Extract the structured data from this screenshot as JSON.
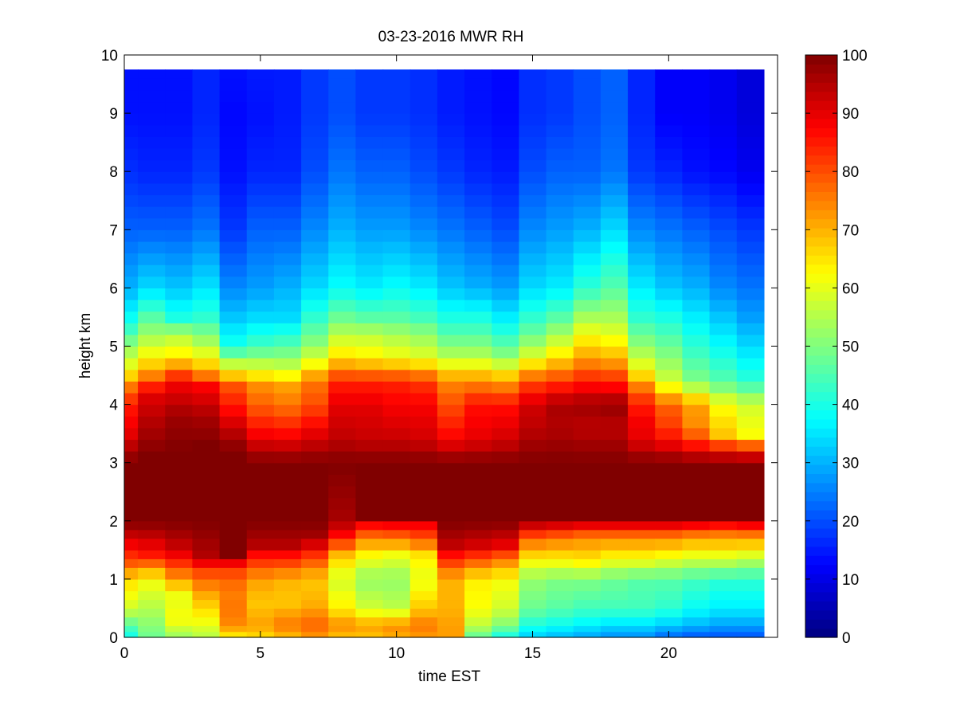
{
  "chart_data": {
    "type": "heatmap",
    "title": "03-23-2016 MWR RH",
    "xlabel": "time EST",
    "ylabel": "height km",
    "xlim": [
      0,
      24
    ],
    "ylim": [
      0,
      10
    ],
    "x_ticks": [
      0,
      5,
      10,
      15,
      20
    ],
    "y_ticks": [
      0,
      1,
      2,
      3,
      4,
      5,
      6,
      7,
      8,
      9,
      10
    ],
    "colorbar": {
      "min": 0,
      "max": 100,
      "ticks": [
        0,
        10,
        20,
        30,
        40,
        50,
        60,
        70,
        80,
        90,
        100
      ],
      "colormap": "jet"
    },
    "grid": false,
    "x": [
      0,
      1,
      2,
      3,
      4,
      5,
      6,
      7,
      8,
      9,
      10,
      11,
      12,
      13,
      14,
      15,
      16,
      17,
      18,
      19,
      20,
      21,
      22,
      23
    ],
    "heights": [
      0,
      0.1,
      0.2,
      0.35,
      0.5,
      0.65,
      0.8,
      1.0,
      1.2,
      1.35,
      1.5,
      1.7,
      1.85,
      2.0,
      2.2,
      2.4,
      2.6,
      2.8,
      3.0,
      3.2,
      3.4,
      3.6,
      3.8,
      4.0,
      4.2,
      4.4,
      4.6,
      4.8,
      5.0,
      5.2,
      5.4,
      5.6,
      5.8,
      6.0,
      6.2,
      6.4,
      6.6,
      6.8,
      7.0,
      7.2,
      7.4,
      7.6,
      7.8,
      8.0,
      8.2,
      8.4,
      8.6,
      8.8,
      9.0,
      9.2,
      9.4,
      9.6,
      9.75
    ],
    "profiles": [
      {
        "time": 0,
        "h": [
          0,
          0.5,
          1.0,
          1.3,
          2.0,
          3.0,
          3.5,
          4.0,
          4.3,
          4.6,
          5.0,
          5.4,
          6.0,
          7.0,
          8.0,
          9.0,
          9.75
        ],
        "rh": [
          38,
          58,
          66,
          80,
          100,
          100,
          90,
          85,
          76,
          62,
          52,
          40,
          30,
          22,
          17,
          14,
          14
        ]
      },
      {
        "time": 1,
        "h": [
          0,
          0.5,
          1.0,
          1.4,
          2.0,
          3.1,
          3.7,
          4.2,
          4.6,
          5.0,
          5.5,
          6.0,
          7.0,
          8.0,
          9.0,
          9.75
        ],
        "rh": [
          48,
          55,
          62,
          85,
          100,
          100,
          95,
          90,
          70,
          58,
          46,
          34,
          22,
          16,
          14,
          14
        ]
      },
      {
        "time": 2,
        "h": [
          0,
          0.3,
          0.7,
          1.0,
          1.5,
          2.0,
          3.2,
          3.8,
          4.4,
          4.8,
          5.2,
          5.5,
          6.0,
          7.0,
          8.0,
          9.0,
          9.75
        ],
        "rh": [
          52,
          62,
          60,
          72,
          92,
          100,
          100,
          97,
          88,
          65,
          55,
          40,
          32,
          22,
          16,
          14,
          14
        ]
      },
      {
        "time": 3,
        "h": [
          0,
          0.3,
          0.7,
          1.1,
          1.4,
          2.0,
          3.3,
          3.8,
          4.3,
          4.6,
          5.0,
          5.5,
          6.0,
          7.0,
          8.0,
          9.0,
          9.75
        ],
        "rh": [
          55,
          62,
          70,
          80,
          95,
          100,
          100,
          96,
          88,
          70,
          56,
          42,
          35,
          24,
          18,
          16,
          16
        ]
      },
      {
        "time": 4,
        "h": [
          0,
          0.2,
          0.5,
          0.8,
          1.2,
          1.4,
          2.0,
          3.2,
          3.6,
          4.0,
          4.3,
          4.6,
          5.0,
          5.5,
          6.0,
          7.0,
          8.0,
          9.0,
          9.75
        ],
        "rh": [
          62,
          74,
          76,
          75,
          82,
          100,
          100,
          100,
          93,
          85,
          80,
          62,
          40,
          32,
          26,
          18,
          14,
          13,
          14
        ]
      },
      {
        "time": 5,
        "h": [
          0,
          0.2,
          0.6,
          1.0,
          1.4,
          1.6,
          2.0,
          3.0,
          3.5,
          4.0,
          4.3,
          4.6,
          5.0,
          5.5,
          6.0,
          7.0,
          8.0,
          9.0,
          9.75
        ],
        "rh": [
          65,
          72,
          68,
          72,
          86,
          95,
          100,
          100,
          88,
          78,
          74,
          60,
          44,
          34,
          28,
          22,
          16,
          14,
          15
        ]
      },
      {
        "time": 6,
        "h": [
          0,
          0.2,
          0.6,
          1.0,
          1.4,
          1.6,
          2.0,
          3.0,
          3.5,
          4.0,
          4.3,
          4.6,
          5.0,
          5.5,
          6.0,
          7.0,
          8.0,
          9.0,
          9.75
        ],
        "rh": [
          68,
          76,
          68,
          70,
          86,
          95,
          100,
          100,
          87,
          76,
          72,
          58,
          46,
          34,
          30,
          22,
          16,
          15,
          15
        ]
      },
      {
        "time": 7,
        "h": [
          0,
          0.2,
          0.6,
          1.0,
          1.4,
          1.7,
          2.0,
          3.0,
          3.5,
          4.0,
          4.4,
          4.7,
          5.0,
          5.5,
          6.0,
          7.0,
          8.0,
          9.0,
          9.75
        ],
        "rh": [
          72,
          78,
          70,
          68,
          82,
          96,
          100,
          100,
          90,
          80,
          76,
          62,
          52,
          42,
          34,
          26,
          20,
          18,
          18
        ]
      },
      {
        "time": 8,
        "h": [
          0,
          0.2,
          0.5,
          1.0,
          1.4,
          1.7,
          2.0,
          3.0,
          3.4,
          4.0,
          4.4,
          4.8,
          5.2,
          5.5,
          6.0,
          7.0,
          8.0,
          9.0,
          9.75
        ],
        "rh": [
          68,
          74,
          64,
          58,
          68,
          85,
          96,
          100,
          94,
          90,
          84,
          66,
          56,
          48,
          38,
          30,
          24,
          20,
          20
        ]
      },
      {
        "time": 9,
        "h": [
          0,
          0.2,
          0.5,
          1.0,
          1.4,
          1.7,
          1.9,
          2.1,
          3.0,
          3.4,
          4.0,
          4.4,
          4.8,
          5.2,
          5.5,
          6.0,
          7.0,
          8.0,
          9.0,
          9.75
        ],
        "rh": [
          68,
          72,
          58,
          52,
          62,
          75,
          85,
          100,
          100,
          93,
          90,
          84,
          64,
          56,
          46,
          36,
          28,
          22,
          18,
          18
        ]
      },
      {
        "time": 10,
        "h": [
          0,
          0.2,
          0.5,
          1.0,
          1.4,
          1.7,
          1.9,
          2.1,
          3.0,
          3.4,
          4.0,
          4.4,
          4.8,
          5.2,
          5.5,
          6.0,
          7.0,
          8.0,
          9.0,
          9.75
        ],
        "rh": [
          70,
          74,
          56,
          52,
          60,
          76,
          86,
          100,
          100,
          93,
          88,
          84,
          62,
          54,
          46,
          38,
          28,
          22,
          18,
          18
        ]
      },
      {
        "time": 11,
        "h": [
          0,
          0.2,
          0.5,
          1.0,
          1.4,
          1.7,
          1.9,
          2.1,
          3.0,
          3.4,
          4.0,
          4.4,
          4.8,
          5.2,
          5.5,
          6.0,
          7.0,
          8.0,
          9.0,
          9.75
        ],
        "rh": [
          72,
          76,
          68,
          60,
          64,
          80,
          86,
          100,
          100,
          92,
          88,
          82,
          60,
          52,
          44,
          36,
          26,
          20,
          17,
          17
        ]
      },
      {
        "time": 12,
        "h": [
          0,
          0.2,
          0.5,
          1.0,
          1.3,
          1.6,
          2.0,
          3.0,
          3.4,
          4.0,
          4.4,
          4.8,
          5.2,
          5.5,
          6.0,
          7.0,
          8.0,
          9.0,
          9.75
        ],
        "rh": [
          72,
          72,
          70,
          70,
          82,
          94,
          100,
          100,
          88,
          80,
          74,
          56,
          46,
          40,
          32,
          24,
          18,
          15,
          15
        ]
      },
      {
        "time": 13,
        "h": [
          0,
          0.2,
          0.5,
          1.0,
          1.3,
          1.6,
          2.0,
          3.0,
          3.4,
          4.0,
          4.4,
          4.8,
          5.2,
          5.5,
          6.0,
          7.0,
          8.0,
          9.0,
          9.75
        ],
        "rh": [
          46,
          56,
          62,
          64,
          78,
          92,
          100,
          100,
          90,
          86,
          74,
          56,
          46,
          40,
          30,
          22,
          16,
          14,
          14
        ]
      },
      {
        "time": 14,
        "h": [
          0,
          0.2,
          0.5,
          1.0,
          1.3,
          1.6,
          2.0,
          3.0,
          3.4,
          4.0,
          4.4,
          4.8,
          5.2,
          5.5,
          6.0,
          7.0,
          8.0,
          9.0,
          9.75
        ],
        "rh": [
          38,
          50,
          58,
          62,
          74,
          90,
          100,
          100,
          92,
          86,
          72,
          52,
          42,
          36,
          28,
          20,
          15,
          13,
          13
        ]
      },
      {
        "time": 15,
        "h": [
          0,
          0.2,
          0.5,
          1.0,
          1.3,
          1.7,
          1.9,
          2.0,
          3.0,
          3.6,
          4.0,
          4.4,
          4.8,
          5.2,
          5.5,
          6.0,
          7.0,
          8.0,
          9.0,
          9.75
        ],
        "rh": [
          32,
          40,
          48,
          52,
          62,
          78,
          90,
          100,
          100,
          94,
          92,
          80,
          60,
          48,
          42,
          34,
          26,
          20,
          17,
          17
        ]
      },
      {
        "time": 16,
        "h": [
          0,
          0.2,
          0.5,
          1.0,
          1.3,
          1.7,
          1.9,
          2.0,
          3.0,
          3.6,
          4.0,
          4.4,
          4.8,
          5.2,
          5.5,
          6.0,
          7.0,
          8.0,
          9.0,
          9.75
        ],
        "rh": [
          30,
          38,
          46,
          50,
          62,
          76,
          88,
          100,
          100,
          95,
          96,
          82,
          66,
          54,
          46,
          36,
          28,
          22,
          18,
          18
        ]
      },
      {
        "time": 17,
        "h": [
          0,
          0.2,
          0.5,
          1.0,
          1.3,
          1.7,
          1.9,
          2.0,
          3.0,
          3.6,
          4.0,
          4.4,
          4.8,
          5.2,
          5.5,
          6.0,
          7.0,
          8.0,
          9.0,
          9.75
        ],
        "rh": [
          28,
          36,
          44,
          50,
          64,
          74,
          86,
          100,
          100,
          94,
          97,
          85,
          72,
          62,
          54,
          42,
          30,
          22,
          20,
          20
        ]
      },
      {
        "time": 18,
        "h": [
          0,
          0.2,
          0.5,
          1.0,
          1.3,
          1.7,
          1.9,
          2.0,
          3.0,
          3.6,
          4.0,
          4.4,
          4.8,
          5.2,
          5.5,
          6.0,
          7.0,
          8.0,
          9.0,
          9.75
        ],
        "rh": [
          26,
          34,
          44,
          48,
          60,
          74,
          86,
          100,
          100,
          94,
          98,
          84,
          70,
          60,
          54,
          46,
          34,
          24,
          22,
          22
        ]
      },
      {
        "time": 19,
        "h": [
          0,
          0.2,
          0.5,
          1.0,
          1.3,
          1.7,
          1.9,
          2.0,
          3.0,
          3.4,
          3.8,
          4.2,
          4.6,
          5.0,
          5.5,
          6.0,
          7.0,
          8.0,
          9.0,
          9.75
        ],
        "rh": [
          26,
          34,
          44,
          46,
          60,
          74,
          86,
          100,
          100,
          90,
          88,
          80,
          62,
          52,
          42,
          36,
          26,
          18,
          16,
          16
        ]
      },
      {
        "time": 20,
        "h": [
          0,
          0.2,
          0.5,
          1.0,
          1.3,
          1.7,
          1.9,
          2.0,
          3.0,
          3.3,
          3.6,
          4.0,
          4.4,
          5.0,
          5.5,
          6.0,
          7.0,
          8.0,
          9.0,
          9.75
        ],
        "rh": [
          22,
          32,
          42,
          46,
          58,
          74,
          86,
          100,
          100,
          90,
          82,
          78,
          58,
          48,
          40,
          32,
          24,
          16,
          12,
          12
        ]
      },
      {
        "time": 21,
        "h": [
          0,
          0.2,
          0.5,
          1.0,
          1.3,
          1.7,
          1.9,
          2.0,
          3.0,
          3.2,
          3.6,
          4.0,
          4.4,
          5.0,
          5.5,
          6.0,
          7.0,
          8.0,
          9.0,
          9.75
        ],
        "rh": [
          20,
          30,
          38,
          44,
          56,
          72,
          84,
          100,
          100,
          90,
          74,
          72,
          50,
          42,
          36,
          30,
          22,
          14,
          12,
          12
        ]
      },
      {
        "time": 22,
        "h": [
          0,
          0.2,
          0.5,
          1.0,
          1.3,
          1.7,
          1.9,
          2.0,
          3.0,
          3.2,
          3.5,
          4.0,
          4.4,
          5.0,
          5.5,
          6.0,
          7.0,
          8.0,
          9.0,
          9.75
        ],
        "rh": [
          20,
          28,
          36,
          42,
          56,
          72,
          82,
          100,
          100,
          88,
          68,
          62,
          46,
          38,
          32,
          26,
          20,
          13,
          11,
          11
        ]
      },
      {
        "time": 23,
        "h": [
          0,
          0.2,
          0.5,
          1.0,
          1.3,
          1.7,
          1.9,
          2.0,
          3.0,
          3.2,
          3.5,
          4.0,
          4.4,
          5.0,
          5.5,
          6.0,
          7.0,
          8.0,
          9.0,
          9.75
        ],
        "rh": [
          20,
          28,
          36,
          42,
          54,
          72,
          84,
          100,
          100,
          86,
          62,
          58,
          42,
          34,
          28,
          24,
          18,
          11,
          9,
          9
        ]
      }
    ]
  }
}
